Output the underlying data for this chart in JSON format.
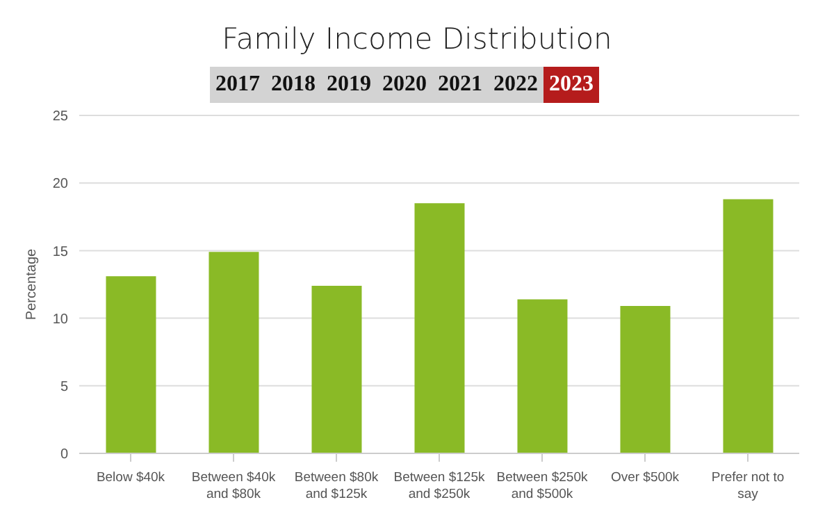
{
  "chart_data": {
    "type": "bar",
    "title": "Family Income Distribution",
    "annotations": [
      "2017",
      "2018",
      "2019",
      "2020",
      "2021",
      "2022",
      "2023"
    ],
    "categories": [
      "Below $40k",
      "Between $40k and $80k",
      "Between $80k and $125k",
      "Between $125k and $250k",
      "Between $250k and $500k",
      "Over $500k",
      "Prefer not to say"
    ],
    "values": [
      13.1,
      14.9,
      12.4,
      18.5,
      11.4,
      10.9,
      18.8
    ],
    "color": "#8aba26",
    "ylabel": "Percentage",
    "ylim": [
      0,
      25
    ],
    "yticks": [
      0,
      5,
      10,
      15,
      20,
      25
    ],
    "grid": "y"
  }
}
